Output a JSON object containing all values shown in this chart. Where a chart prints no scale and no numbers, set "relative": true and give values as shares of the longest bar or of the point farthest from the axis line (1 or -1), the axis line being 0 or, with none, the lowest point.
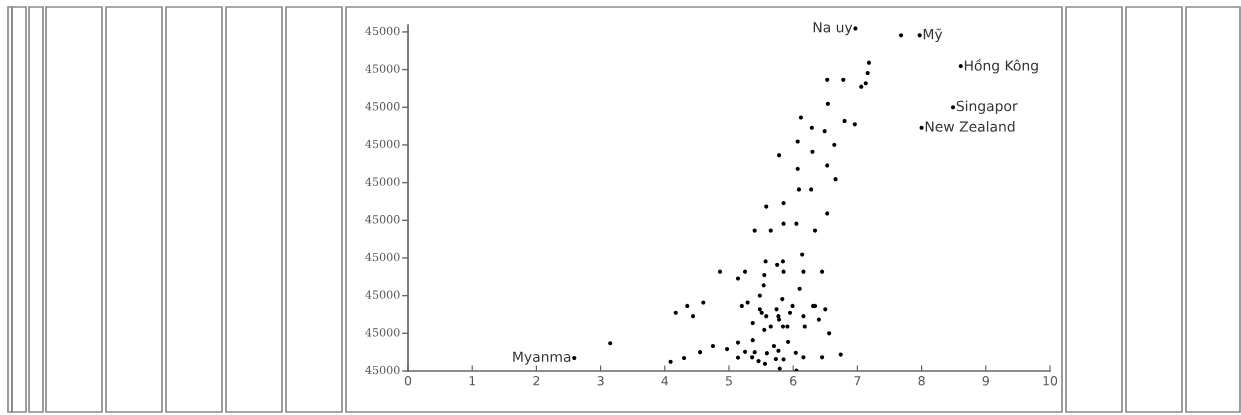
{
  "chart_data": {
    "type": "scatter",
    "marker": "circle",
    "grid": false,
    "relative": true,
    "xlim": [
      0,
      10
    ],
    "xticks": [
      0,
      1,
      2,
      3,
      4,
      5,
      6,
      7,
      8,
      9,
      10
    ],
    "series": [
      {
        "color": "#000000",
        "x": [
          6.97,
          7.68,
          7.97,
          7.18,
          7.16,
          6.53,
          6.78,
          7.13,
          7.06,
          8.61,
          6.54,
          8.49,
          6.12,
          6.8,
          6.96,
          8.0,
          6.29,
          6.49,
          6.07,
          6.64,
          5.78,
          6.3,
          6.53,
          6.07,
          6.66,
          6.09,
          6.28,
          5.58,
          5.85,
          6.53,
          5.85,
          6.05,
          5.4,
          5.65,
          6.34,
          6.14,
          5.57,
          5.84,
          5.75,
          4.86,
          5.25,
          5.14,
          5.55,
          5.85,
          6.16,
          6.45,
          5.54,
          6.1,
          5.48,
          5.83,
          5.99,
          6.31,
          6.34,
          6.5,
          4.6,
          4.44,
          5.2,
          5.29,
          5.48,
          5.51,
          5.58,
          5.74,
          5.77,
          5.78,
          5.95,
          6.16,
          6.4,
          5.37,
          5.65,
          5.55,
          5.84,
          5.91,
          6.18,
          6.56,
          5.37,
          5.92,
          4.75,
          5.14,
          5.7,
          4.55,
          4.97,
          5.25,
          5.4,
          5.59,
          5.77,
          6.04,
          6.74,
          5.14,
          5.36,
          5.73,
          5.85,
          6.16,
          6.45,
          5.46,
          5.56,
          5.79,
          6.05,
          2.59,
          3.15,
          4.17,
          4.35,
          4.09,
          4.3
        ],
        "values": [
          1.0,
          0.98,
          0.98,
          0.9,
          0.87,
          0.85,
          0.85,
          0.84,
          0.83,
          0.89,
          0.78,
          0.77,
          0.74,
          0.73,
          0.72,
          0.71,
          0.71,
          0.7,
          0.67,
          0.66,
          0.63,
          0.64,
          0.6,
          0.59,
          0.56,
          0.53,
          0.53,
          0.48,
          0.49,
          0.46,
          0.43,
          0.43,
          0.41,
          0.41,
          0.41,
          0.34,
          0.32,
          0.32,
          0.31,
          0.29,
          0.29,
          0.27,
          0.28,
          0.29,
          0.29,
          0.29,
          0.25,
          0.24,
          0.22,
          0.21,
          0.19,
          0.19,
          0.19,
          0.18,
          0.2,
          0.16,
          0.19,
          0.2,
          0.18,
          0.17,
          0.16,
          0.18,
          0.16,
          0.15,
          0.17,
          0.16,
          0.15,
          0.14,
          0.13,
          0.12,
          0.13,
          0.13,
          0.13,
          0.11,
          0.09,
          0.085,
          0.073,
          0.083,
          0.073,
          0.055,
          0.064,
          0.056,
          0.055,
          0.052,
          0.059,
          0.053,
          0.048,
          0.039,
          0.04,
          0.035,
          0.034,
          0.04,
          0.04,
          0.029,
          0.021,
          0.007,
          0.001,
          0.038,
          0.081,
          0.17,
          0.19,
          0.027,
          0.038
        ]
      }
    ],
    "annotations": [
      {
        "text": "Na uy",
        "x": 6.97,
        "y": 1.0
      },
      {
        "text": "Mỹ",
        "x": 7.97,
        "y": 0.98
      },
      {
        "text": "Hồng Kông",
        "x": 8.61,
        "y": 0.89
      },
      {
        "text": "Singapor",
        "x": 8.49,
        "y": 0.77
      },
      {
        "text": "New Zealand",
        "x": 8.0,
        "y": 0.71
      },
      {
        "text": "Myanma",
        "x": 2.59,
        "y": 0.038
      },
      "45000",
      "45000",
      "45000",
      "45000",
      "45000",
      "45000",
      "45000",
      "45000",
      "45000",
      "45000"
    ]
  }
}
